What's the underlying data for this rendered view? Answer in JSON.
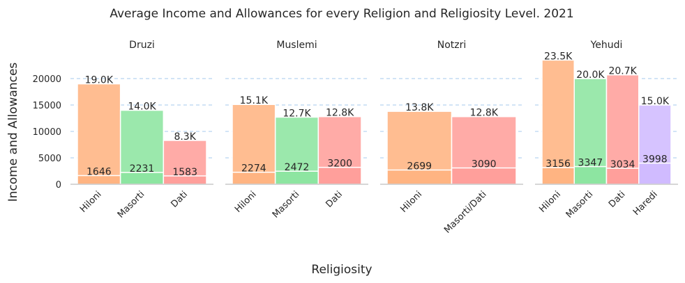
{
  "chart_data": {
    "type": "bar",
    "title": "Average Income and Allowances for every Religion and Religiosity Level. 2021",
    "xlabel": "Religiosity",
    "ylabel": "Income and Allowances",
    "ylim": [
      0,
      25000
    ],
    "yticks": [
      "0",
      "5000",
      "10000",
      "15000",
      "20000"
    ],
    "grid": "horizontal dashed",
    "colors": {
      "Hiloni": "#ffb482",
      "Masorti": "#8de5a1",
      "Dati": "#ff9f9b",
      "Masorti/Dati": "#ff9f9b",
      "Haredi": "#d0bbff"
    },
    "panels": [
      {
        "name": "Druzi",
        "categories": [
          "Hiloni",
          "Masorti",
          "Dati"
        ],
        "income": [
          19000,
          14000,
          8300
        ],
        "income_labels": [
          "19.0K",
          "14.0K",
          "8.3K"
        ],
        "allowances": [
          1646,
          2231,
          1583
        ],
        "allowance_labels": [
          "1646",
          "2231",
          "1583"
        ]
      },
      {
        "name": "Muslemi",
        "categories": [
          "Hiloni",
          "Masorti",
          "Dati"
        ],
        "income": [
          15100,
          12700,
          12800
        ],
        "income_labels": [
          "15.1K",
          "12.7K",
          "12.8K"
        ],
        "allowances": [
          2274,
          2472,
          3200
        ],
        "allowance_labels": [
          "2274",
          "2472",
          "3200"
        ]
      },
      {
        "name": "Notzri",
        "categories": [
          "Hiloni",
          "Masorti/Dati"
        ],
        "income": [
          13800,
          12800
        ],
        "income_labels": [
          "13.8K",
          "12.8K"
        ],
        "allowances": [
          2699,
          3090
        ],
        "allowance_labels": [
          "2699",
          "3090"
        ]
      },
      {
        "name": "Yehudi",
        "categories": [
          "Hiloni",
          "Masorti",
          "Dati",
          "Haredi"
        ],
        "income": [
          23500,
          20000,
          20700,
          15000
        ],
        "income_labels": [
          "23.5K",
          "20.0K",
          "20.7K",
          "15.0K"
        ],
        "allowances": [
          3156,
          3347,
          3034,
          3998
        ],
        "allowance_labels": [
          "3156",
          "3347",
          "3034",
          "3998"
        ]
      }
    ]
  }
}
